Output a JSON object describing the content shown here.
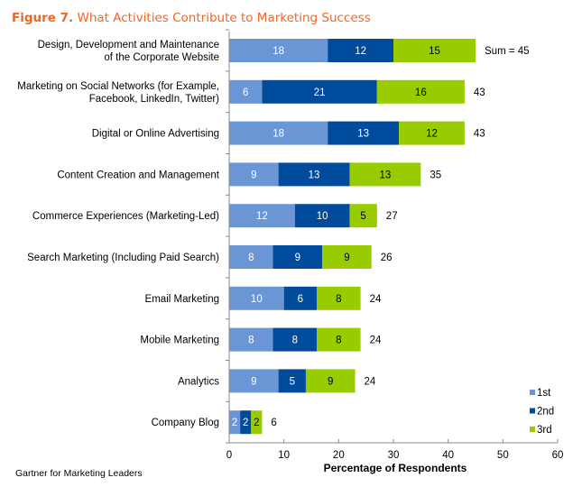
{
  "header": {
    "figure_label": "Figure 7.",
    "title": "What Activities Contribute to Marketing Success"
  },
  "footer": {
    "source": "Gartner for Marketing Leaders"
  },
  "chart_data": {
    "type": "bar",
    "orientation": "horizontal",
    "stacked": true,
    "title": "What Activities Contribute to Marketing Success",
    "xlabel": "Percentage of Respondents",
    "ylabel": "",
    "xlim": [
      0,
      60
    ],
    "xticks": [
      0,
      10,
      20,
      30,
      40,
      50,
      60
    ],
    "grid": false,
    "legend_position": "bottom-right",
    "categories": [
      [
        "Design, Development and Maintenance",
        "of the Corporate Website"
      ],
      [
        "Marketing on Social Networks (for Example,",
        "Facebook, LinkedIn, Twitter)"
      ],
      [
        "Digital or Online Advertising"
      ],
      [
        "Content Creation and Management"
      ],
      [
        "Commerce Experiences (Marketing-Led)"
      ],
      [
        "Search Marketing (Including Paid Search)"
      ],
      [
        "Email Marketing"
      ],
      [
        "Mobile Marketing"
      ],
      [
        "Analytics"
      ],
      [
        "Company Blog"
      ]
    ],
    "series": [
      {
        "name": "1st",
        "color": "#6b96d6",
        "label_color": "#ffffff",
        "values": [
          18,
          6,
          18,
          9,
          12,
          8,
          10,
          8,
          9,
          2
        ]
      },
      {
        "name": "2nd",
        "color": "#004b9b",
        "label_color": "#ffffff",
        "values": [
          12,
          21,
          13,
          13,
          10,
          9,
          6,
          8,
          5,
          2
        ]
      },
      {
        "name": "3rd",
        "color": "#99cc00",
        "label_color": "#000000",
        "values": [
          15,
          16,
          12,
          13,
          5,
          9,
          8,
          8,
          9,
          2
        ]
      }
    ],
    "totals": [
      "Sum = 45",
      "43",
      "43",
      "35",
      "27",
      "26",
      "24",
      "24",
      "24",
      "6"
    ]
  }
}
